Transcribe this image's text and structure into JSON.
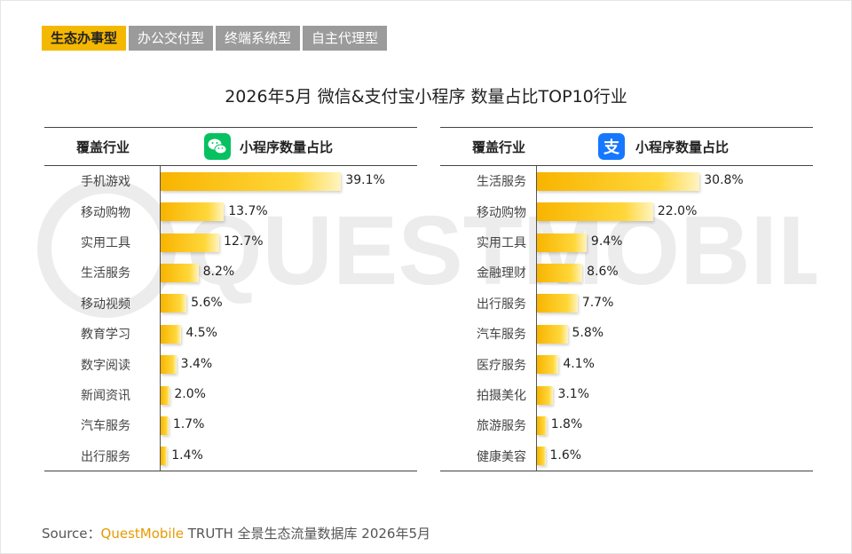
{
  "tabs": [
    {
      "label": "生态办事型",
      "active": true
    },
    {
      "label": "办公交付型",
      "active": false
    },
    {
      "label": "终端系统型",
      "active": false
    },
    {
      "label": "自主代理型",
      "active": false
    }
  ],
  "title": "2026年5月 微信&支付宝小程序 数量占比TOP10行业",
  "watermark": "QUESTMOBILE",
  "colors": {
    "accent": "#f5b800",
    "tab_inactive": "#9b9b9b",
    "wechat": "#07c160",
    "alipay": "#1677ff"
  },
  "chart_data": [
    {
      "type": "bar",
      "platform_icon": "wechat-icon",
      "col_industry": "覆盖行业",
      "col_share": "小程序数量占比",
      "categories": [
        "手机游戏",
        "移动购物",
        "实用工具",
        "生活服务",
        "移动视频",
        "教育学习",
        "数字阅读",
        "新闻资讯",
        "汽车服务",
        "出行服务"
      ],
      "values": [
        39.1,
        13.7,
        12.7,
        8.2,
        5.6,
        4.5,
        3.4,
        2.0,
        1.7,
        1.4
      ],
      "labels": [
        "39.1%",
        "13.7%",
        "12.7%",
        "8.2%",
        "5.6%",
        "4.5%",
        "3.4%",
        "2.0%",
        "1.7%",
        "1.4%"
      ],
      "unit": "%"
    },
    {
      "type": "bar",
      "platform_icon": "alipay-icon",
      "col_industry": "覆盖行业",
      "col_share": "小程序数量占比",
      "categories": [
        "生活服务",
        "移动购物",
        "实用工具",
        "金融理财",
        "出行服务",
        "汽车服务",
        "医疗服务",
        "拍摄美化",
        "旅游服务",
        "健康美容"
      ],
      "values": [
        30.8,
        22.0,
        9.4,
        8.6,
        7.7,
        5.8,
        4.1,
        3.1,
        1.8,
        1.6
      ],
      "labels": [
        "30.8%",
        "22.0%",
        "9.4%",
        "8.6%",
        "7.7%",
        "5.8%",
        "4.1%",
        "3.1%",
        "1.8%",
        "1.6%"
      ],
      "unit": "%"
    }
  ],
  "source": {
    "prefix": "Source：",
    "brand": "QuestMobile",
    "rest": " TRUTH 全景生态流量数据库 2026年5月"
  }
}
